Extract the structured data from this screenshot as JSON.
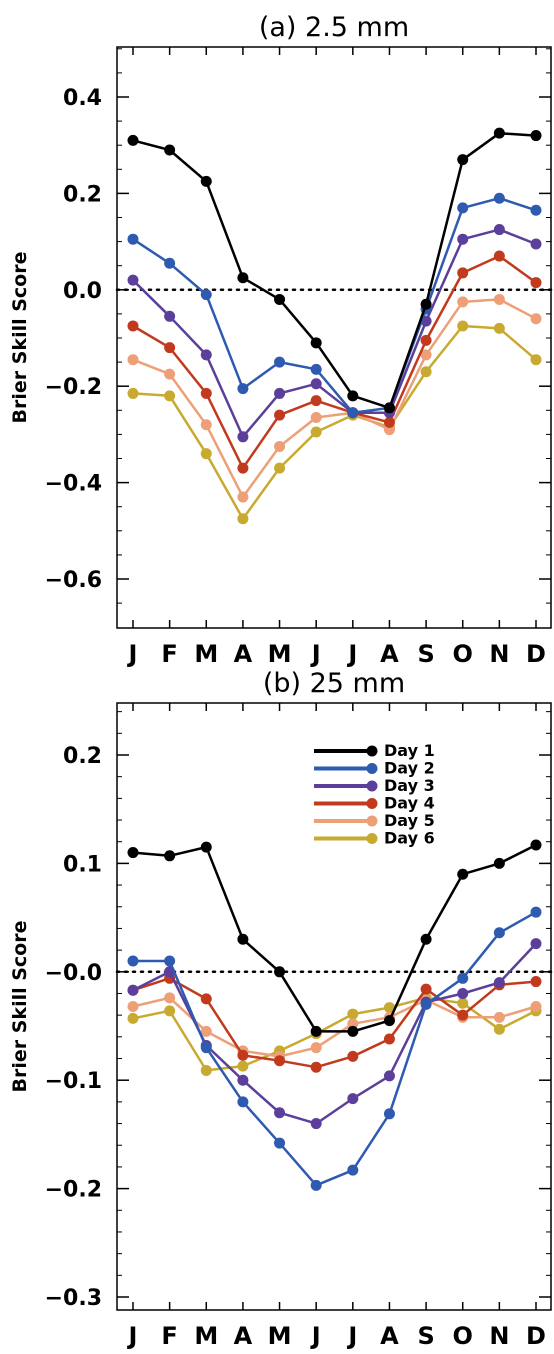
{
  "chart_data": [
    {
      "type": "line",
      "title": "(a) 2.5 mm",
      "xlabel": "",
      "ylabel": "Brier Skill Score",
      "categories": [
        "J",
        "F",
        "M",
        "A",
        "M",
        "J",
        "J",
        "A",
        "S",
        "O",
        "N",
        "D"
      ],
      "ylim": [
        -0.7,
        0.5
      ],
      "yticks": [
        0.4,
        0.2,
        0.0,
        -0.2,
        -0.4,
        -0.6
      ],
      "ytick_labels": [
        "0.4",
        "0.2",
        "0.0",
        "−0.2",
        "−0.4",
        "−0.6"
      ],
      "reference_line": 0.0,
      "legend": false,
      "series": [
        {
          "name": "Day 1",
          "color": "#000000",
          "values": [
            0.31,
            0.29,
            0.225,
            0.025,
            -0.02,
            -0.11,
            -0.22,
            -0.245,
            -0.03,
            0.27,
            0.325,
            0.32
          ]
        },
        {
          "name": "Day 2",
          "color": "#2e5ab0",
          "values": [
            0.105,
            0.055,
            -0.01,
            -0.205,
            -0.15,
            -0.165,
            -0.255,
            -0.245,
            -0.04,
            0.17,
            0.19,
            0.165
          ]
        },
        {
          "name": "Day 3",
          "color": "#5b3f9a",
          "values": [
            0.02,
            -0.055,
            -0.135,
            -0.305,
            -0.215,
            -0.195,
            -0.255,
            -0.255,
            -0.065,
            0.105,
            0.125,
            0.095
          ]
        },
        {
          "name": "Day 4",
          "color": "#c23a1e",
          "values": [
            -0.075,
            -0.12,
            -0.215,
            -0.37,
            -0.26,
            -0.23,
            -0.255,
            -0.275,
            -0.105,
            0.035,
            0.07,
            0.015
          ]
        },
        {
          "name": "Day 5",
          "color": "#eda078",
          "values": [
            -0.145,
            -0.175,
            -0.28,
            -0.43,
            -0.325,
            -0.265,
            -0.255,
            -0.29,
            -0.135,
            -0.025,
            -0.02,
            -0.06
          ]
        },
        {
          "name": "Day 6",
          "color": "#c8aa30",
          "values": [
            -0.215,
            -0.22,
            -0.34,
            -0.475,
            -0.37,
            -0.295,
            -0.26,
            -0.285,
            -0.17,
            -0.075,
            -0.08,
            -0.145
          ]
        }
      ]
    },
    {
      "type": "line",
      "title": "(b) 25 mm",
      "xlabel": "",
      "ylabel": "Brier Skill Score",
      "categories": [
        "J",
        "F",
        "M",
        "A",
        "M",
        "J",
        "J",
        "A",
        "S",
        "O",
        "N",
        "D"
      ],
      "ylim": [
        -0.32,
        0.25
      ],
      "yticks": [
        0.2,
        0.1,
        0.0,
        -0.1,
        -0.2,
        -0.3
      ],
      "ytick_labels": [
        "0.2",
        "0.1",
        "−0.0",
        "−0.1",
        "−0.2",
        "−0.3"
      ],
      "reference_line": 0.0,
      "legend": true,
      "legend_position": "top-center",
      "series": [
        {
          "name": "Day 1",
          "color": "#000000",
          "values": [
            0.11,
            0.107,
            0.115,
            0.03,
            0.0,
            -0.055,
            -0.055,
            -0.045,
            0.03,
            0.09,
            0.1,
            0.117
          ]
        },
        {
          "name": "Day 2",
          "color": "#2e5ab0",
          "values": [
            0.01,
            0.01,
            -0.07,
            -0.12,
            -0.158,
            -0.197,
            -0.183,
            -0.131,
            -0.03,
            -0.006,
            0.036,
            0.055
          ]
        },
        {
          "name": "Day 3",
          "color": "#5b3f9a",
          "values": [
            -0.017,
            0.0,
            -0.068,
            -0.1,
            -0.13,
            -0.14,
            -0.117,
            -0.096,
            -0.028,
            -0.02,
            -0.01,
            0.026
          ]
        },
        {
          "name": "Day 4",
          "color": "#c23a1e",
          "values": [
            -0.017,
            -0.006,
            -0.025,
            -0.077,
            -0.082,
            -0.088,
            -0.078,
            -0.062,
            -0.016,
            -0.04,
            -0.012,
            -0.009
          ]
        },
        {
          "name": "Day 5",
          "color": "#eda078",
          "values": [
            -0.032,
            -0.024,
            -0.055,
            -0.073,
            -0.078,
            -0.07,
            -0.048,
            -0.042,
            -0.026,
            -0.042,
            -0.042,
            -0.032
          ]
        },
        {
          "name": "Day 6",
          "color": "#c8aa30",
          "values": [
            -0.043,
            -0.036,
            -0.091,
            -0.087,
            -0.073,
            -0.057,
            -0.039,
            -0.033,
            -0.024,
            -0.029,
            -0.053,
            -0.036
          ]
        }
      ]
    }
  ]
}
